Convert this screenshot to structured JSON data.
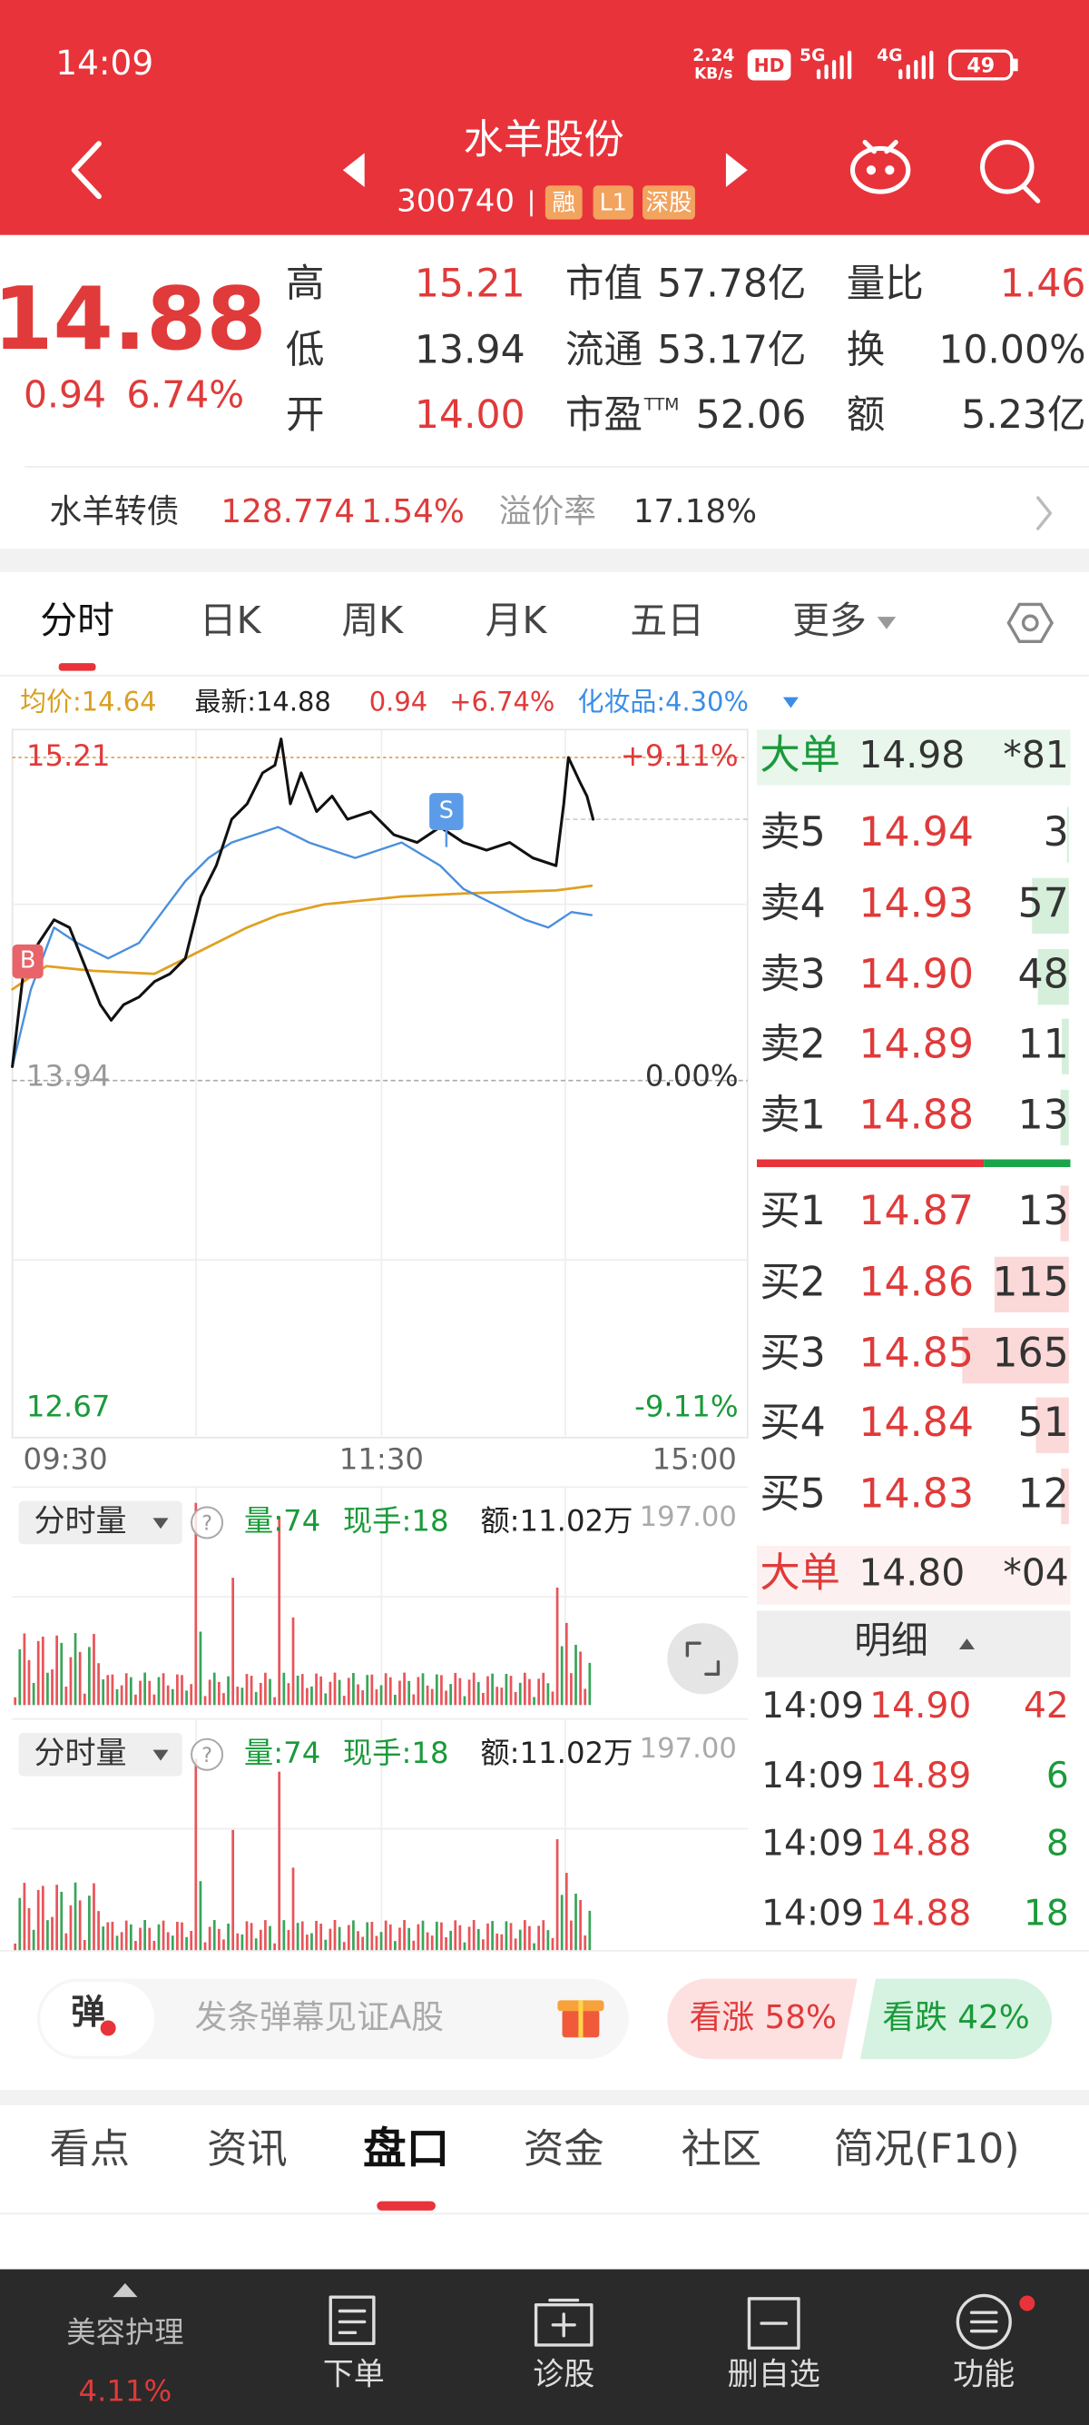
{
  "status_bar": {
    "time": "14:09",
    "net_speed": "2.24",
    "net_unit": "KB/s",
    "hd_badge": "HD",
    "network_5g": "5G",
    "network_4g": "4G",
    "battery": "49"
  },
  "header": {
    "title": "水羊股份",
    "code": "300740",
    "tags": [
      "融",
      "L1",
      "深股"
    ]
  },
  "quote": {
    "price": "14.88",
    "change": "0.94",
    "change_pct": "6.74%",
    "stats": [
      {
        "label": "高",
        "value": "15.21"
      },
      {
        "label": "低",
        "value": "13.94"
      },
      {
        "label": "开",
        "value": "14.00"
      },
      {
        "label": "市值",
        "value": "57.78亿"
      },
      {
        "label": "流通",
        "value": "53.17亿"
      },
      {
        "label": "市盈",
        "label_sup": "TTM",
        "value": "52.06"
      },
      {
        "label": "量比",
        "value": "1.46"
      },
      {
        "label": "换",
        "value": "10.00%"
      },
      {
        "label": "额",
        "value": "5.23亿"
      }
    ]
  },
  "bond": {
    "name": "水羊转债",
    "price": "128.774",
    "change_pct": "1.54%",
    "premium_label": "溢价率",
    "premium": "17.18%"
  },
  "chart_tabs": [
    "分时",
    "日K",
    "周K",
    "月K",
    "五日",
    "更多"
  ],
  "intraday": {
    "avg": "均价:14.64",
    "latest": "最新:14.88",
    "change": "0.94",
    "change_pct": "+6.74%",
    "sector": "化妆品:4.30%",
    "high_label": "15.21",
    "high_pct": "+9.11%",
    "base_label": "13.94",
    "base_pct": "0.00%",
    "low_label": "12.67",
    "low_pct": "-9.11%",
    "times": [
      "09:30",
      "11:30",
      "15:00"
    ],
    "markers": [
      "B",
      "S"
    ]
  },
  "volume_panels": [
    {
      "selector": "分时量",
      "help_icon": "?",
      "volume": "量:74",
      "current": "现手:18",
      "amount": "额:11.02万",
      "axis_max": "197.00"
    },
    {
      "selector": "分时量",
      "help_icon": "?",
      "volume": "量:74",
      "current": "现手:18",
      "amount": "额:11.02万",
      "axis_max": "197.00"
    }
  ],
  "order_book": {
    "big_sell": {
      "label": "大单",
      "price": "14.98",
      "count": "*81"
    },
    "asks": [
      {
        "label": "卖5",
        "price": "14.94",
        "volume": 3
      },
      {
        "label": "卖4",
        "price": "14.93",
        "volume": 57
      },
      {
        "label": "卖3",
        "price": "14.90",
        "volume": 48
      },
      {
        "label": "卖2",
        "price": "14.89",
        "volume": 11
      },
      {
        "label": "卖1",
        "price": "14.88",
        "volume": 13
      }
    ],
    "bids": [
      {
        "label": "买1",
        "price": "14.87",
        "volume": 13
      },
      {
        "label": "买2",
        "price": "14.86",
        "volume": 115
      },
      {
        "label": "买3",
        "price": "14.85",
        "volume": 165
      },
      {
        "label": "买4",
        "price": "14.84",
        "volume": 51
      },
      {
        "label": "买5",
        "price": "14.83",
        "volume": 12
      }
    ],
    "big_buy": {
      "label": "大单",
      "price": "14.80",
      "count": "*04"
    },
    "detail_title": "明细",
    "ticks": [
      {
        "time": "14:09",
        "price": "14.90",
        "volume": 42
      },
      {
        "time": "14:09",
        "price": "14.89",
        "volume": 6
      },
      {
        "time": "14:09",
        "price": "14.88",
        "volume": 8
      },
      {
        "time": "14:09",
        "price": "14.88",
        "volume": 18
      }
    ]
  },
  "danmu": {
    "icon": "弹",
    "placeholder": "发条弹幕见证A股",
    "bull": "看涨 58%",
    "bear": "看跌 42%"
  },
  "bottom_tabs": [
    "看点",
    "资讯",
    "盘口",
    "资金",
    "社区",
    "简况(F10)"
  ],
  "nav": {
    "sector": "美容护理",
    "sector_change": "4.11%",
    "items": [
      "下单",
      "诊股",
      "删自选",
      "功能"
    ]
  }
}
